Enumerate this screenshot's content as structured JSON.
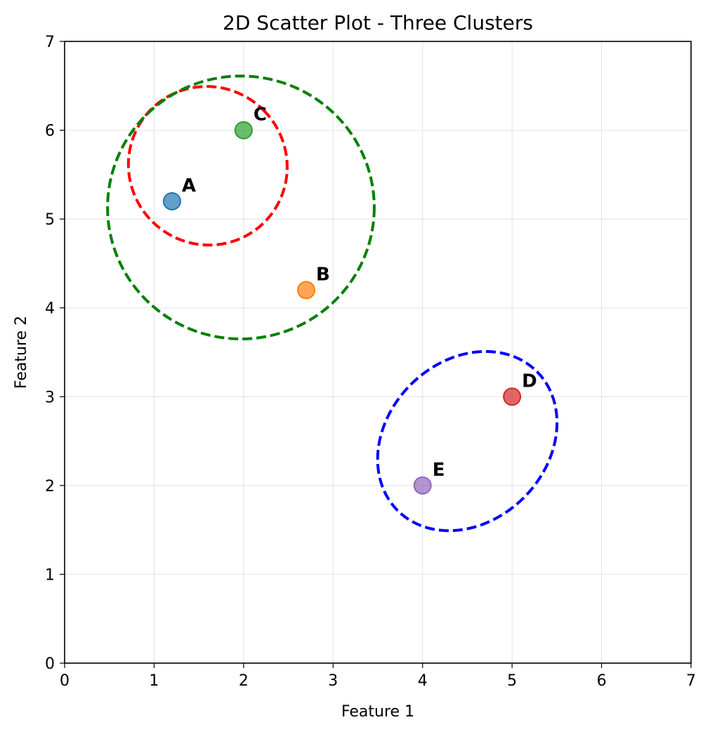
{
  "chart_data": {
    "type": "scatter",
    "title": "2D Scatter Plot - Three Clusters",
    "xlabel": "Feature 1",
    "ylabel": "Feature 2",
    "xlim": [
      0,
      7
    ],
    "ylim": [
      0,
      7
    ],
    "xticks": [
      0,
      1,
      2,
      3,
      4,
      5,
      6,
      7
    ],
    "yticks": [
      0,
      1,
      2,
      3,
      4,
      5,
      6,
      7
    ],
    "grid": true,
    "points": [
      {
        "label": "A",
        "x": 1.2,
        "y": 5.2,
        "color": "#1f77b4"
      },
      {
        "label": "B",
        "x": 2.7,
        "y": 4.2,
        "color": "#ff7f0e"
      },
      {
        "label": "C",
        "x": 2.0,
        "y": 6.0,
        "color": "#2ca02c"
      },
      {
        "label": "D",
        "x": 5.0,
        "y": 3.0,
        "color": "#d62728"
      },
      {
        "label": "E",
        "x": 4.0,
        "y": 2.0,
        "color": "#9467bd"
      }
    ],
    "ellipses": [
      {
        "color": "#ff0000",
        "cx": 1.6,
        "cy": 5.6,
        "rx": 0.88,
        "ry": 0.9,
        "angle": 45
      },
      {
        "color": "#008000",
        "cx": 1.97,
        "cy": 5.13,
        "rx": 1.49,
        "ry": 1.48,
        "angle": 0
      },
      {
        "color": "#0000ff",
        "cx": 4.5,
        "cy": 2.5,
        "rx": 1.1,
        "ry": 0.9,
        "angle": 45
      }
    ]
  }
}
